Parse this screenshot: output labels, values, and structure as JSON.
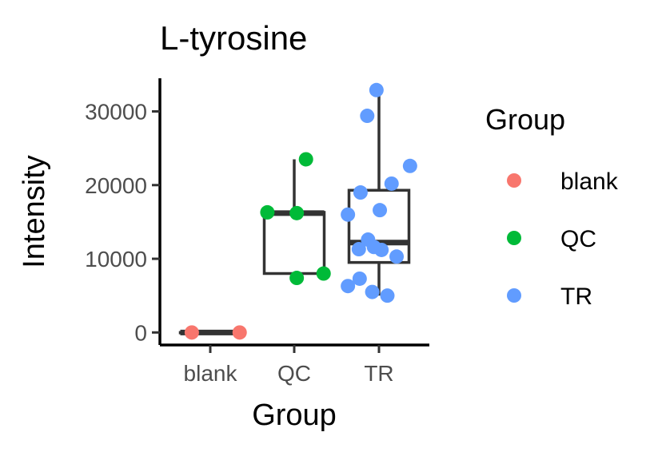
{
  "chart_data": {
    "type": "boxplot",
    "title": "L-tyrosine",
    "xlabel": "Group",
    "ylabel": "Intensity",
    "categories": [
      "blank",
      "QC",
      "TR"
    ],
    "y_ticks": [
      0,
      10000,
      20000,
      30000
    ],
    "y_tick_labels": [
      "0",
      "10000",
      "20000",
      "30000"
    ],
    "ylim": [
      -1700,
      34500
    ],
    "grid": false,
    "legend": {
      "title": "Group",
      "position": "right",
      "entries": [
        {
          "label": "blank",
          "color": "#F8766D"
        },
        {
          "label": "QC",
          "color": "#00BA38"
        },
        {
          "label": "TR",
          "color": "#619CFF"
        }
      ]
    },
    "boxes": [
      {
        "category": "blank",
        "min": 0,
        "q1": 0,
        "median": 0,
        "q3": 0,
        "max": 0
      },
      {
        "category": "QC",
        "min": 7500,
        "q1": 8000,
        "median": 16200,
        "q3": 16300,
        "max": 23500
      },
      {
        "category": "TR",
        "min": 5000,
        "q1": 9500,
        "median": 12200,
        "q3": 19300,
        "max": 32900
      }
    ],
    "points": [
      {
        "group": "blank",
        "x": -0.22,
        "y": 0
      },
      {
        "group": "blank",
        "x": 0.35,
        "y": 0
      },
      {
        "group": "QC",
        "x": -0.32,
        "y": 16300
      },
      {
        "group": "QC",
        "x": 0.03,
        "y": 16200
      },
      {
        "group": "QC",
        "x": 0.14,
        "y": 23500
      },
      {
        "group": "QC",
        "x": 0.03,
        "y": 7400
      },
      {
        "group": "QC",
        "x": 0.35,
        "y": 8000
      },
      {
        "group": "TR",
        "x": -0.03,
        "y": 32900
      },
      {
        "group": "TR",
        "x": -0.14,
        "y": 29400
      },
      {
        "group": "TR",
        "x": 0.37,
        "y": 22600
      },
      {
        "group": "TR",
        "x": 0.15,
        "y": 20200
      },
      {
        "group": "TR",
        "x": -0.22,
        "y": 19000
      },
      {
        "group": "TR",
        "x": 0.01,
        "y": 16600
      },
      {
        "group": "TR",
        "x": -0.37,
        "y": 16000
      },
      {
        "group": "TR",
        "x": -0.13,
        "y": 12600
      },
      {
        "group": "TR",
        "x": -0.24,
        "y": 11300
      },
      {
        "group": "TR",
        "x": -0.06,
        "y": 11600
      },
      {
        "group": "TR",
        "x": 0.03,
        "y": 11200
      },
      {
        "group": "TR",
        "x": 0.21,
        "y": 10300
      },
      {
        "group": "TR",
        "x": -0.23,
        "y": 7300
      },
      {
        "group": "TR",
        "x": -0.37,
        "y": 6300
      },
      {
        "group": "TR",
        "x": -0.08,
        "y": 5500
      },
      {
        "group": "TR",
        "x": 0.1,
        "y": 5000
      }
    ]
  }
}
